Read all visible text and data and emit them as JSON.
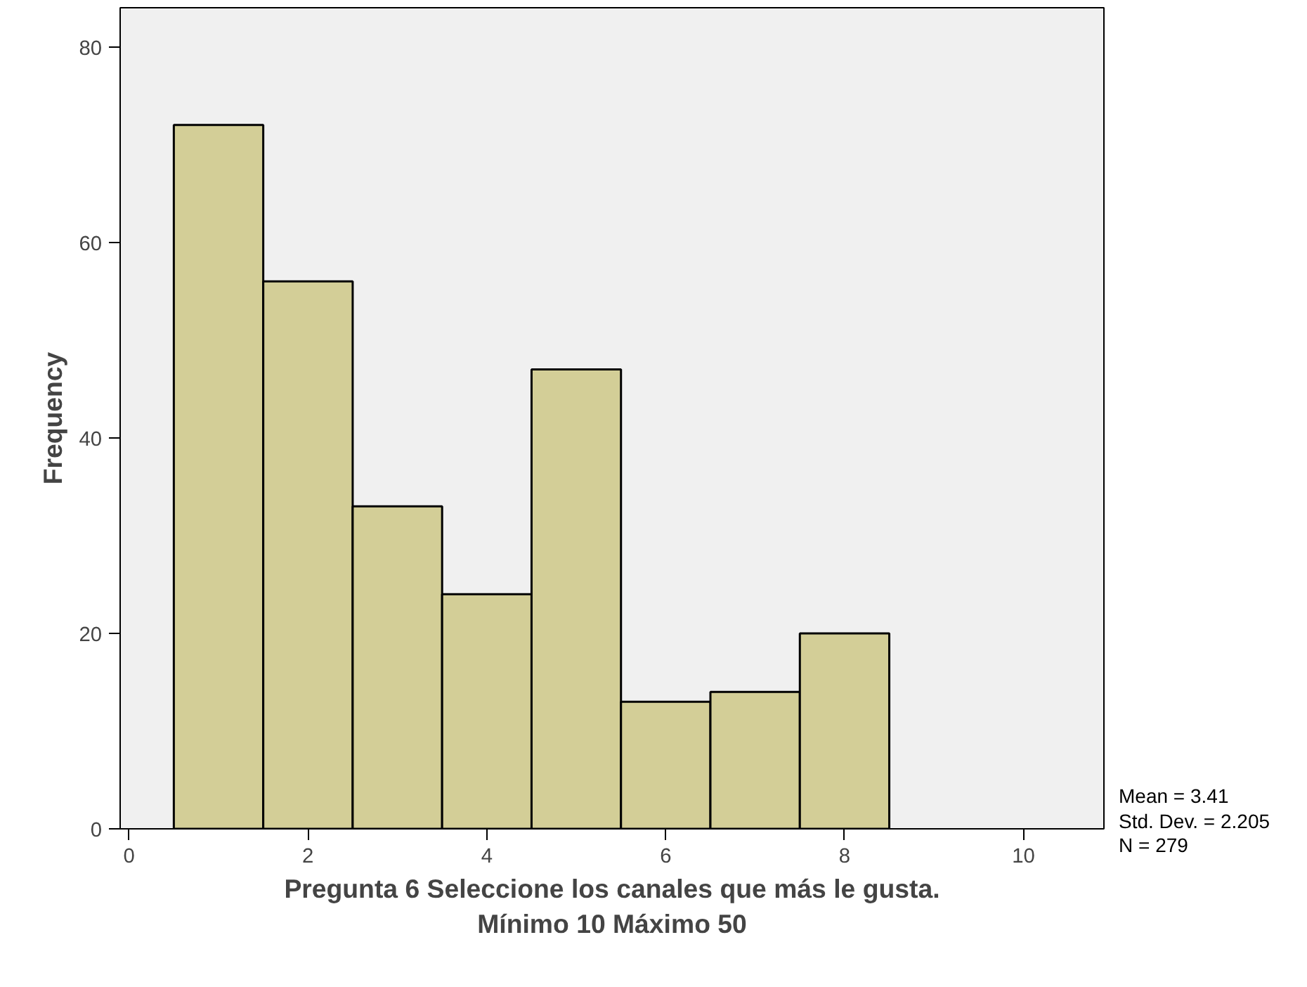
{
  "chart_data": {
    "type": "histogram",
    "xlabel": "Pregunta 6 Seleccione los canales que más le gusta.\nMínimo 10 Máximo 50",
    "ylabel": "Frequency",
    "bins": [
      0.5,
      1.5,
      2.5,
      3.5,
      4.5,
      5.5,
      6.5,
      7.5,
      8.5
    ],
    "values": [
      72,
      56,
      33,
      24,
      47,
      13,
      14,
      20
    ],
    "color": "#d3ce97",
    "xlim": [
      -0.1,
      10.9
    ],
    "ylim": [
      0,
      84
    ],
    "xticks": [
      0,
      2,
      4,
      6,
      8,
      10
    ],
    "yticks": [
      0,
      20,
      40,
      60,
      80
    ],
    "grid": false,
    "annotations": [
      "Mean = 3.41",
      "Std. Dev. = 2.205",
      "N = 279"
    ]
  }
}
